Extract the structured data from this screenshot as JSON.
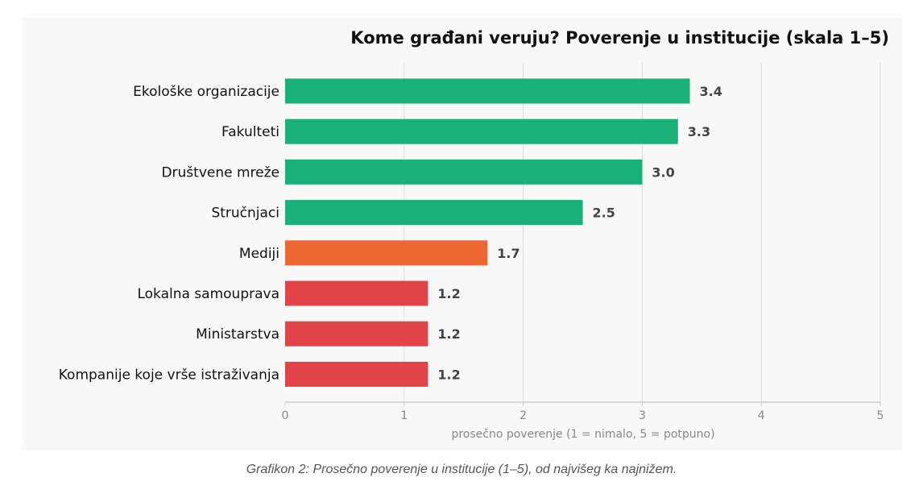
{
  "chart_data": {
    "type": "bar",
    "orientation": "horizontal",
    "title": "Kome građani veruju? Poverenje u institucije (skala 1–5)",
    "xlabel": "prosečno poverenje (1 = nimalo, 5 = potpuno)",
    "ylabel": "",
    "xlim": [
      0,
      5
    ],
    "xticks": [
      "0",
      "1",
      "2",
      "3",
      "4",
      "5"
    ],
    "grid": "vertical",
    "categories": [
      "Ekološke organizacije",
      "Fakulteti",
      "Društvene mreže",
      "Stručnjaci",
      "Mediji",
      "Lokalna samouprava",
      "Ministarstva",
      "Kompanije koje vrše istraživanja"
    ],
    "values": [
      3.4,
      3.3,
      3.0,
      2.5,
      1.7,
      1.2,
      1.2,
      1.2
    ],
    "value_labels": [
      "3.4",
      "3.3",
      "3.0",
      "2.5",
      "1.7",
      "1.2",
      "1.2",
      "1.2"
    ],
    "bar_colors": [
      "#1ab07a",
      "#1ab07a",
      "#1ab07a",
      "#1ab07a",
      "#ee6633",
      "#e04448",
      "#e04448",
      "#e04448"
    ],
    "colors": {
      "high": "#1ab07a",
      "medium": "#ee6633",
      "low": "#e04448",
      "grid": "#dddddd",
      "axis": "#cccccc",
      "panel": "#f8f8f8"
    }
  },
  "caption": "Grafikon 2: Prosečno poverenje u institucije (1–5), od najvišeg ka najnižem."
}
